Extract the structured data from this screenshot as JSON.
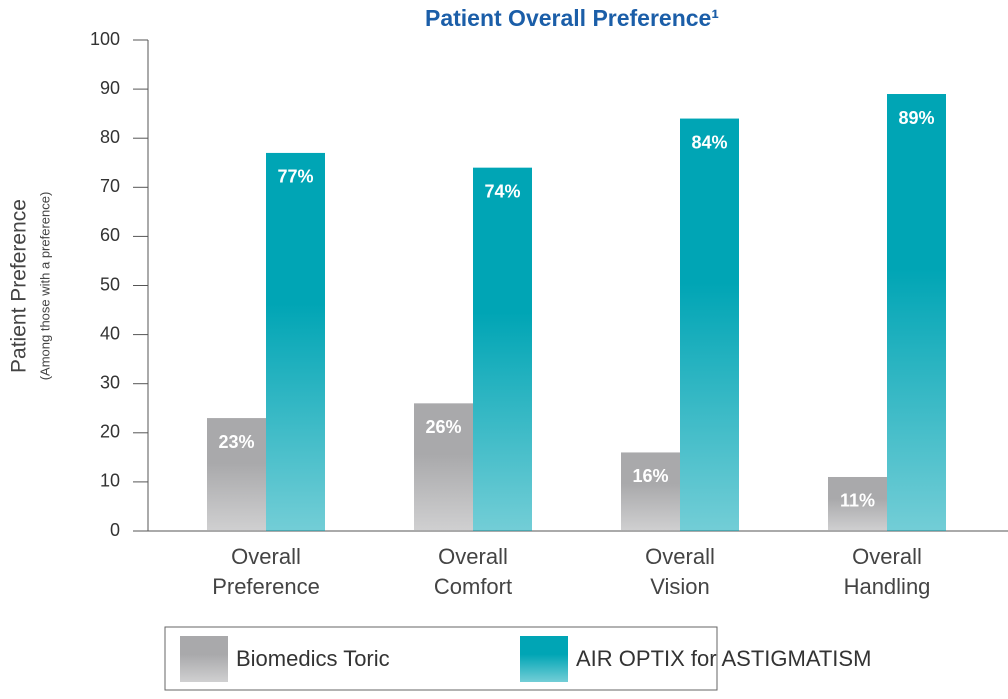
{
  "chart_data": {
    "type": "bar",
    "title": "Patient Overall Preference¹",
    "y_label": "Patient Preference",
    "y_sublabel": "(Among those with a preference)",
    "categories": [
      "Overall Preference",
      "Overall Comfort",
      "Overall Vision",
      "Overall Handling"
    ],
    "series": [
      {
        "name": "Biomedics Toric",
        "color": "#a9a9ab",
        "values": [
          23,
          26,
          16,
          11
        ],
        "value_labels": [
          "23%",
          "26%",
          "16%",
          "11%"
        ]
      },
      {
        "name": "AIR OPTIX for ASTIGMATISM",
        "color": "#00a5b5",
        "values": [
          77,
          74,
          84,
          89
        ],
        "value_labels": [
          "77%",
          "74%",
          "84%",
          "89%"
        ]
      }
    ],
    "ylim": [
      0,
      100
    ],
    "yticks": [
      0,
      10,
      20,
      30,
      40,
      50,
      60,
      70,
      80,
      90,
      100
    ]
  }
}
